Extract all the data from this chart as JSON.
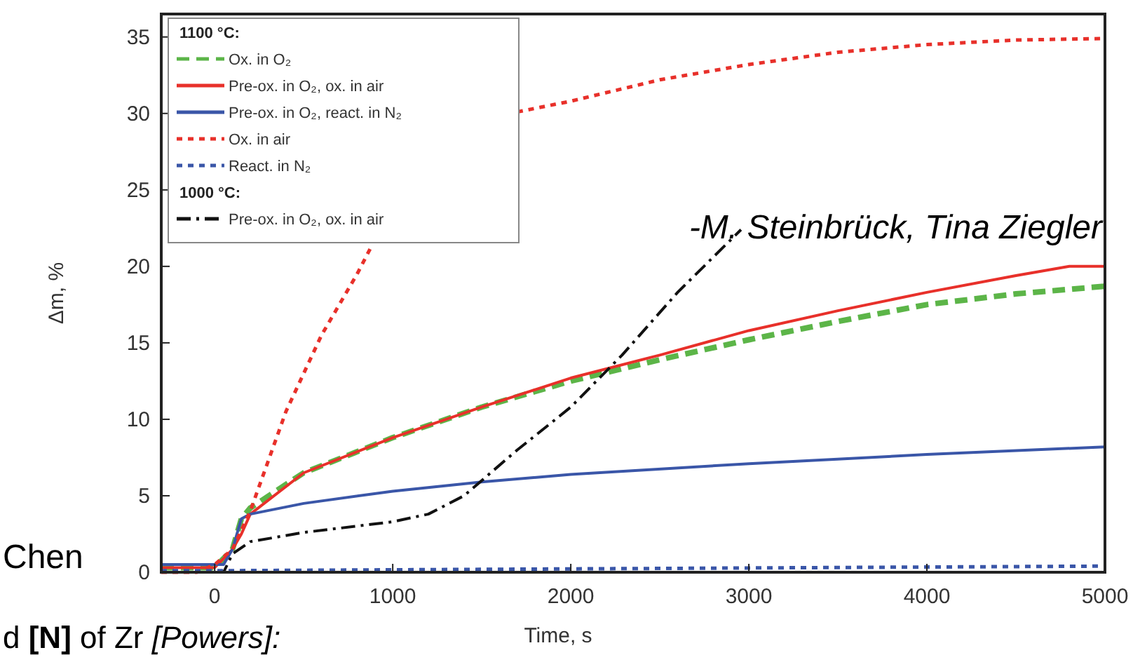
{
  "chart_data": {
    "type": "line",
    "xlabel": "Time, s",
    "ylabel": "Δm, %",
    "legend_title": "1100 °C:",
    "legend": "top left",
    "xlim": [
      -300,
      5000
    ],
    "ylim": [
      0,
      36.5
    ],
    "xticks": [
      0,
      1000,
      2000,
      3000,
      4000,
      5000
    ],
    "yticks": [
      0,
      5,
      10,
      15,
      20,
      25,
      30,
      35
    ],
    "grid": false,
    "annotations": [
      "1000 °C:",
      "-M. Steinbrück, Tina Ziegler",
      "Chen",
      "d [N] of Zr [Powers]:"
    ],
    "series": [
      {
        "name": "Ox. in O₂",
        "color": "#5cb548",
        "line_style": "dashed",
        "x": [
          -300,
          0,
          100,
          150,
          200,
          500,
          1000,
          1500,
          2000,
          2500,
          3000,
          3500,
          4000,
          4500,
          5000
        ],
        "values": [
          0.3,
          0.3,
          1.5,
          3.5,
          4.2,
          6.5,
          8.8,
          10.8,
          12.5,
          13.9,
          15.2,
          16.4,
          17.5,
          18.2,
          18.7
        ]
      },
      {
        "name": "Pre-ox. in O₂, ox. in air",
        "color": "#e8302a",
        "line_style": "solid",
        "x": [
          -300,
          0,
          100,
          150,
          200,
          500,
          1000,
          1500,
          2000,
          2500,
          3000,
          3500,
          4000,
          4500,
          4800,
          5000
        ],
        "values": [
          0.3,
          0.3,
          1.5,
          2.5,
          3.8,
          6.5,
          8.8,
          10.8,
          12.7,
          14.2,
          15.8,
          17.1,
          18.3,
          19.4,
          20,
          20
        ]
      },
      {
        "name": "Pre-ox. in O₂, react. in N₂",
        "color": "#3a56a8",
        "line_style": "solid",
        "x": [
          -300,
          50,
          100,
          150,
          200,
          500,
          1000,
          1500,
          2000,
          3000,
          4000,
          5000
        ],
        "values": [
          0.5,
          0.5,
          1.5,
          3.5,
          3.8,
          4.5,
          5.3,
          5.9,
          6.4,
          7.1,
          7.7,
          8.2
        ]
      },
      {
        "name": "Ox. in air",
        "color": "#e8302a",
        "line_style": "dotted",
        "x": [
          -300,
          -100,
          0,
          100,
          200,
          400,
          600,
          800,
          880,
          1200,
          1700,
          2000,
          2500,
          3000,
          3500,
          4000,
          4500,
          5000
        ],
        "values": [
          0,
          0,
          0.5,
          1.5,
          4,
          10.5,
          15.5,
          19.5,
          21.3,
          null,
          30.1,
          30.8,
          32.2,
          33.2,
          34,
          34.5,
          34.8,
          34.9
        ]
      },
      {
        "name": "React. in N₂",
        "color": "#3a56a8",
        "line_style": "dotted",
        "x": [
          -300,
          0,
          5000
        ],
        "values": [
          0.1,
          0.1,
          0.4
        ]
      },
      {
        "name": "Pre-ox. in O₂, ox. in air",
        "color": "#111111",
        "line_style": "dashdot",
        "x": [
          -300,
          50,
          100,
          200,
          500,
          1000,
          1200,
          1400,
          1500,
          1700,
          2000,
          2288,
          2600,
          2956
        ],
        "values": [
          0,
          0,
          1.2,
          2,
          2.6,
          3.3,
          3.8,
          5,
          6,
          8,
          10.8,
          14.2,
          18.3,
          22.4
        ]
      }
    ]
  }
}
